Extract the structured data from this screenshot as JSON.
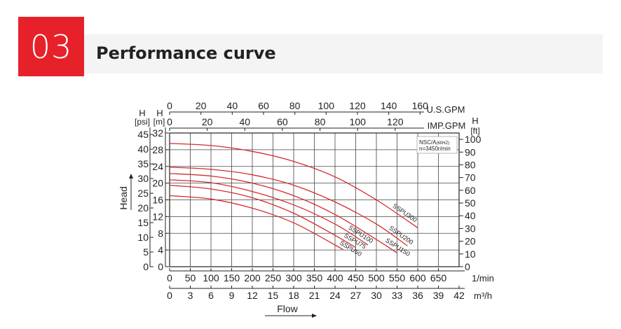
{
  "header": {
    "number": "03",
    "title": "Performance curve",
    "accent_color": "#e6212a"
  },
  "chart_data": {
    "type": "line",
    "title": "",
    "x_axes": {
      "bottom_primary": {
        "label": "1/min",
        "ticks": [
          0,
          50,
          100,
          150,
          200,
          250,
          300,
          350,
          400,
          450,
          500,
          550,
          600,
          650
        ]
      },
      "bottom_secondary": {
        "label": "m³/h",
        "ticks": [
          0,
          3,
          6,
          9,
          12,
          15,
          18,
          21,
          24,
          27,
          30,
          33,
          36,
          39,
          42
        ]
      },
      "top_us": {
        "label": "U.S.GPM",
        "ticks": [
          0,
          20,
          40,
          60,
          80,
          100,
          120,
          140,
          160
        ]
      },
      "top_imp": {
        "label": "IMP.GPM",
        "ticks": [
          0,
          20,
          40,
          60,
          80,
          100,
          120
        ]
      },
      "flow_label": "Flow"
    },
    "y_axes": {
      "head_label": "Head",
      "psi": {
        "unit_top": "H",
        "unit": "[psi]",
        "ticks": [
          0,
          5,
          10,
          15,
          20,
          25,
          30,
          35,
          40,
          45
        ]
      },
      "m": {
        "unit_top": "H",
        "unit": "[m]",
        "ticks": [
          0,
          4,
          8,
          12,
          16,
          20,
          24,
          28,
          32
        ],
        "range": [
          0,
          32
        ]
      },
      "ft": {
        "unit_top": "H",
        "unit": "[ft]",
        "ticks": [
          0,
          10,
          20,
          30,
          40,
          50,
          60,
          70,
          80,
          90,
          100
        ]
      }
    },
    "x_range_lmin": [
      0,
      700
    ],
    "legend_box": {
      "line1": "NSC/A",
      "line1_small": "(60HZ)",
      "line2": "n=3450r/min",
      "position": "top-right"
    },
    "grid": true,
    "curve_color": "#d62b2b",
    "series": [
      {
        "name": "SSPU300",
        "x": [
          0,
          100,
          200,
          300,
          400,
          500,
          600
        ],
        "y": [
          29.5,
          29.0,
          27.6,
          25.2,
          21.5,
          16.0,
          9.3
        ]
      },
      {
        "name": "SSPU200",
        "x": [
          0,
          100,
          200,
          300,
          400,
          500,
          575
        ],
        "y": [
          23.8,
          23.3,
          22.0,
          19.5,
          15.5,
          10.2,
          5.0
        ]
      },
      {
        "name": "SSPU150",
        "x": [
          0,
          100,
          200,
          300,
          400,
          500,
          550
        ],
        "y": [
          22.3,
          21.7,
          20.0,
          17.0,
          12.5,
          6.5,
          3.3
        ]
      },
      {
        "name": "SSPU100",
        "x": [
          0,
          100,
          200,
          300,
          400,
          480
        ],
        "y": [
          20.8,
          20.1,
          18.0,
          14.8,
          10.2,
          5.2
        ]
      },
      {
        "name": "SSPU75",
        "x": [
          0,
          100,
          200,
          300,
          400,
          450
        ],
        "y": [
          19.5,
          18.6,
          16.5,
          12.8,
          7.5,
          4.6
        ]
      },
      {
        "name": "SSPU50",
        "x": [
          0,
          100,
          200,
          300,
          400,
          420
        ],
        "y": [
          17.0,
          16.2,
          14.0,
          10.5,
          5.2,
          4.0
        ]
      }
    ]
  }
}
